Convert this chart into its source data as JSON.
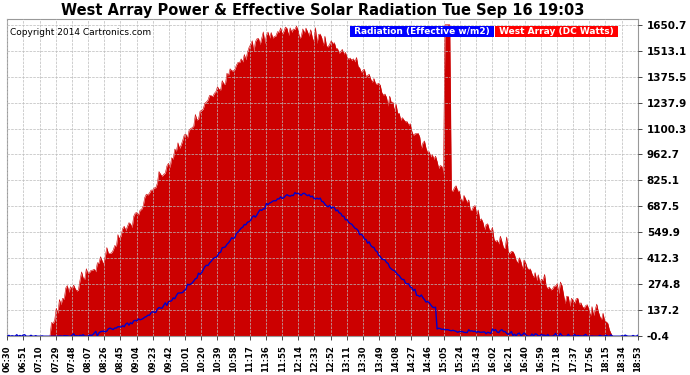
{
  "title": "West Array Power & Effective Solar Radiation Tue Sep 16 19:03",
  "copyright": "Copyright 2014 Cartronics.com",
  "legend_labels": [
    "Radiation (Effective w/m2)",
    "West Array (DC Watts)"
  ],
  "legend_bg_colors": [
    "blue",
    "red"
  ],
  "yticks": [
    -0.4,
    137.2,
    274.8,
    412.3,
    549.9,
    687.5,
    825.1,
    962.7,
    1100.3,
    1237.9,
    1375.5,
    1513.1,
    1650.7
  ],
  "ymin": -0.4,
  "ymax": 1650.7,
  "background_color": "#ffffff",
  "plot_bg_color": "#ffffff",
  "grid_color": "#bbbbbb",
  "fill_color_red": "#cc0000",
  "line_color_blue": "#0000cc",
  "xtick_labels": [
    "06:30",
    "06:51",
    "07:10",
    "07:29",
    "07:48",
    "08:07",
    "08:26",
    "08:45",
    "09:04",
    "09:23",
    "09:42",
    "10:01",
    "10:20",
    "10:39",
    "10:58",
    "11:17",
    "11:36",
    "11:55",
    "12:14",
    "12:33",
    "12:52",
    "13:11",
    "13:30",
    "13:49",
    "14:08",
    "14:27",
    "14:46",
    "15:05",
    "15:24",
    "15:43",
    "16:02",
    "16:21",
    "16:40",
    "16:59",
    "17:18",
    "17:37",
    "17:56",
    "18:15",
    "18:34",
    "18:53"
  ]
}
